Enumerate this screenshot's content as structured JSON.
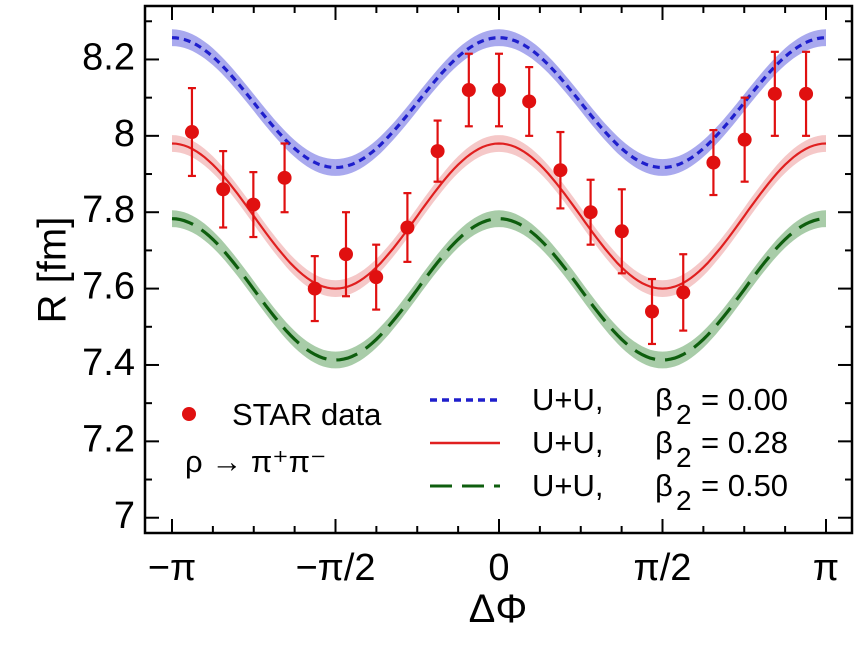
{
  "chart_data": {
    "type": "line",
    "xlabel": "ΔΦ",
    "ylabel": "R [fm]",
    "xlim": [
      -3.14159,
      3.14159
    ],
    "ylim": [
      6.96,
      8.34
    ],
    "x_ticks": [
      {
        "value": -3.14159,
        "label": "−π"
      },
      {
        "value": -1.5708,
        "label": "−π/2"
      },
      {
        "value": 0,
        "label": "0"
      },
      {
        "value": 1.5708,
        "label": "π/2"
      },
      {
        "value": 3.14159,
        "label": "π"
      }
    ],
    "y_ticks": [
      {
        "value": 7.0,
        "label": "7"
      },
      {
        "value": 7.2,
        "label": "7.2"
      },
      {
        "value": 7.4,
        "label": "7.4"
      },
      {
        "value": 7.6,
        "label": "7.6"
      },
      {
        "value": 7.8,
        "label": "7.8"
      },
      {
        "value": 8.0,
        "label": "8"
      },
      {
        "value": 8.2,
        "label": "8.2"
      }
    ],
    "series": [
      {
        "name": "U+U, β2 = 0.00",
        "beta2": "0.00",
        "color": "#1f1fcc",
        "band_color": "#a9a9ee",
        "dash": "7,5",
        "mean": 8.087,
        "amplitude": 0.17,
        "band": 0.022
      },
      {
        "name": "U+U, β2 = 0.28",
        "beta2": "0.28",
        "color": "#e02020",
        "band_color": "#f5c8c8",
        "dash": "",
        "mean": 7.79,
        "amplitude": 0.19,
        "band": 0.022
      },
      {
        "name": "U+U, β2 = 0.50",
        "beta2": "0.50",
        "color": "#0e5e0e",
        "band_color": "#a8cca8",
        "dash": "22,10",
        "mean": 7.598,
        "amplitude": 0.185,
        "band": 0.022
      }
    ],
    "points": {
      "name": "STAR data",
      "color": "#e01010",
      "x": [
        -2.95,
        -2.65,
        -2.36,
        -2.06,
        -1.77,
        -1.47,
        -1.18,
        -0.88,
        -0.59,
        -0.29,
        0.0,
        0.29,
        0.59,
        0.88,
        1.18,
        1.47,
        1.77,
        2.06,
        2.36,
        2.65,
        2.95
      ],
      "y": [
        8.01,
        7.86,
        7.82,
        7.89,
        7.6,
        7.69,
        7.63,
        7.76,
        7.96,
        8.12,
        8.12,
        8.09,
        7.91,
        7.8,
        7.75,
        7.54,
        7.59,
        7.93,
        7.99,
        8.11,
        8.11
      ],
      "err": [
        0.115,
        0.1,
        0.085,
        0.09,
        0.085,
        0.11,
        0.085,
        0.09,
        0.08,
        0.095,
        0.095,
        0.09,
        0.1,
        0.085,
        0.11,
        0.085,
        0.1,
        0.085,
        0.11,
        0.11,
        0.11
      ]
    }
  },
  "legend": {
    "star_label": "STAR data",
    "reaction_label": "ρ → π⁺π⁻",
    "system": "U+U,",
    "beta_symbol": "β",
    "beta_subscript": "2",
    "rows": [
      {
        "value": "= 0.00"
      },
      {
        "value": "= 0.28"
      },
      {
        "value": "= 0.50"
      }
    ]
  }
}
